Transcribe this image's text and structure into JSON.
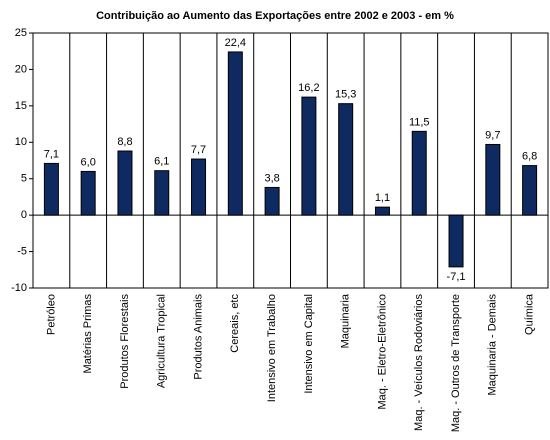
{
  "chart_data": {
    "type": "bar",
    "title": "Contribuição ao Aumento das Exportações entre 2002 e 2003 - em %",
    "categories": [
      "Petróleo",
      "Matérias Primas",
      "Produtos Florestais",
      "Agricultura Tropical",
      "Produtos Animais",
      "Cereais, etc",
      "Intensivo em Trabalho",
      "Intensivo em Capital",
      "Maquinaria",
      "Maq. - Eletro-Eletrônico",
      "Maq. - Veículos Rodoviários",
      "Maq. - Outros de Transporte",
      "Maquinaria - Demais",
      "Química"
    ],
    "values": [
      7.1,
      6.0,
      8.8,
      6.1,
      7.7,
      22.4,
      3.8,
      16.2,
      15.3,
      1.1,
      11.5,
      -7.1,
      9.7,
      6.8
    ],
    "value_labels": [
      "7,1",
      "6,0",
      "8,8",
      "6,1",
      "7,7",
      "22,4",
      "3,8",
      "16,2",
      "15,3",
      "1,1",
      "11,5",
      "-7,1",
      "9,7",
      "6,8"
    ],
    "color": "#0f2a60",
    "ylim": [
      -10,
      25
    ],
    "yticks": [
      -10,
      -5,
      0,
      5,
      10,
      15,
      20,
      25
    ]
  }
}
